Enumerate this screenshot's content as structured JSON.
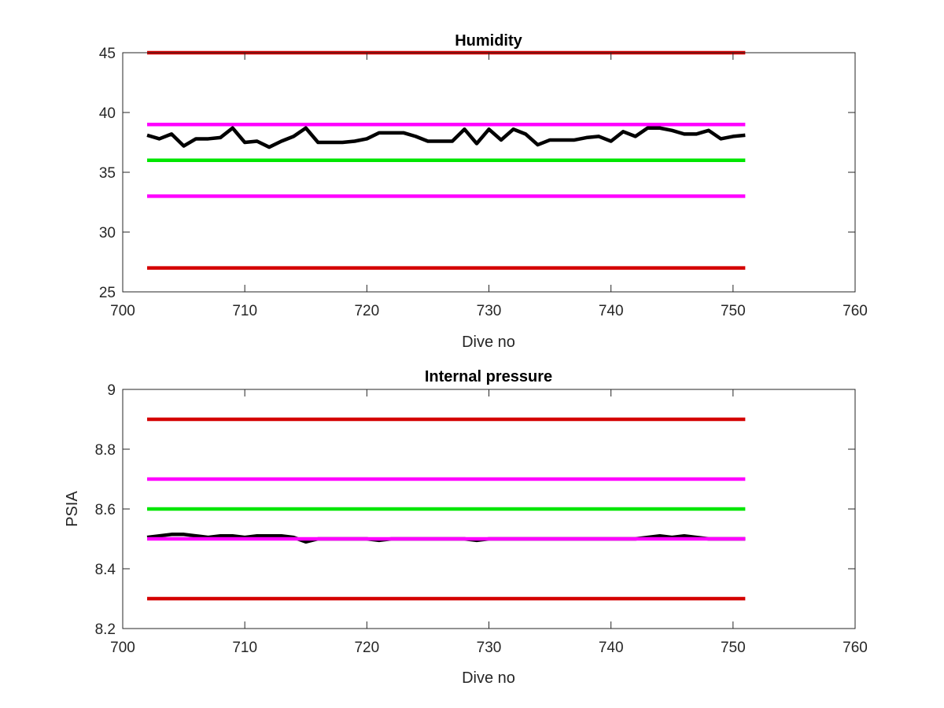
{
  "chart_data": [
    {
      "type": "line",
      "title": "Humidity",
      "xlabel": "Dive no",
      "ylabel": "",
      "xlim": [
        700,
        760
      ],
      "ylim": [
        25,
        45
      ],
      "xticks": [
        "700",
        "710",
        "720",
        "730",
        "740",
        "750",
        "760"
      ],
      "yticks": [
        "25",
        "30",
        "35",
        "40",
        "45"
      ],
      "grid": false,
      "series": [
        {
          "color": "#d40000",
          "x": [
            702,
            751
          ],
          "y": [
            45,
            45
          ]
        },
        {
          "color": "#ff00ff",
          "x": [
            702,
            751
          ],
          "y": [
            39,
            39
          ]
        },
        {
          "color": "#00e600",
          "x": [
            702,
            751
          ],
          "y": [
            36,
            36
          ]
        },
        {
          "color": "#ff00ff",
          "x": [
            702,
            751
          ],
          "y": [
            33,
            33
          ]
        },
        {
          "color": "#d40000",
          "x": [
            702,
            751
          ],
          "y": [
            27,
            27
          ]
        },
        {
          "color": "#000000",
          "x": [
            702,
            703,
            704,
            705,
            706,
            707,
            708,
            709,
            710,
            711,
            712,
            713,
            714,
            715,
            716,
            717,
            718,
            719,
            720,
            721,
            722,
            723,
            724,
            725,
            726,
            727,
            728,
            729,
            730,
            731,
            732,
            733,
            734,
            735,
            736,
            737,
            738,
            739,
            740,
            741,
            742,
            743,
            744,
            745,
            746,
            747,
            748,
            749,
            750,
            751
          ],
          "y": [
            38.1,
            37.8,
            38.2,
            37.2,
            37.8,
            37.8,
            37.9,
            38.7,
            37.5,
            37.6,
            37.1,
            37.6,
            38.0,
            38.7,
            37.5,
            37.5,
            37.5,
            37.6,
            37.8,
            38.3,
            38.3,
            38.3,
            38.0,
            37.6,
            37.6,
            37.6,
            38.6,
            37.4,
            38.6,
            37.7,
            38.6,
            38.2,
            37.3,
            37.7,
            37.7,
            37.7,
            37.9,
            38.0,
            37.6,
            38.4,
            38.0,
            38.7,
            38.7,
            38.5,
            38.2,
            38.2,
            38.5,
            37.8,
            38.0,
            38.1
          ]
        }
      ]
    },
    {
      "type": "line",
      "title": "Internal pressure",
      "xlabel": "Dive no",
      "ylabel": "PSIA",
      "xlim": [
        700,
        760
      ],
      "ylim": [
        8.2,
        9
      ],
      "xticks": [
        "700",
        "710",
        "720",
        "730",
        "740",
        "750",
        "760"
      ],
      "yticks": [
        "8.2",
        "8.4",
        "8.6",
        "8.8",
        "9"
      ],
      "grid": false,
      "series": [
        {
          "color": "#d40000",
          "x": [
            702,
            751
          ],
          "y": [
            8.9,
            8.9
          ]
        },
        {
          "color": "#ff00ff",
          "x": [
            702,
            751
          ],
          "y": [
            8.7,
            8.7
          ]
        },
        {
          "color": "#00e600",
          "x": [
            702,
            751
          ],
          "y": [
            8.6,
            8.6
          ]
        },
        {
          "color": "#000000",
          "x": [
            702,
            703,
            704,
            705,
            706,
            707,
            708,
            709,
            710,
            711,
            712,
            713,
            714,
            715,
            716,
            717,
            718,
            719,
            720,
            721,
            722,
            723,
            724,
            725,
            726,
            727,
            728,
            729,
            730,
            731,
            732,
            733,
            734,
            735,
            736,
            737,
            738,
            739,
            740,
            741,
            742,
            743,
            744,
            745,
            746,
            747,
            748,
            749,
            750,
            751
          ],
          "y": [
            8.505,
            8.51,
            8.515,
            8.515,
            8.51,
            8.505,
            8.51,
            8.51,
            8.505,
            8.51,
            8.51,
            8.51,
            8.505,
            8.49,
            8.5,
            8.5,
            8.5,
            8.5,
            8.5,
            8.495,
            8.5,
            8.5,
            8.5,
            8.5,
            8.5,
            8.5,
            8.5,
            8.495,
            8.5,
            8.5,
            8.5,
            8.5,
            8.5,
            8.5,
            8.5,
            8.5,
            8.5,
            8.5,
            8.5,
            8.5,
            8.5,
            8.505,
            8.51,
            8.505,
            8.51,
            8.505,
            8.5,
            8.5,
            8.5,
            8.5
          ]
        },
        {
          "color": "#ff00ff",
          "x": [
            702,
            751
          ],
          "y": [
            8.5,
            8.5
          ]
        },
        {
          "color": "#d40000",
          "x": [
            702,
            751
          ],
          "y": [
            8.3,
            8.3
          ]
        }
      ]
    }
  ]
}
